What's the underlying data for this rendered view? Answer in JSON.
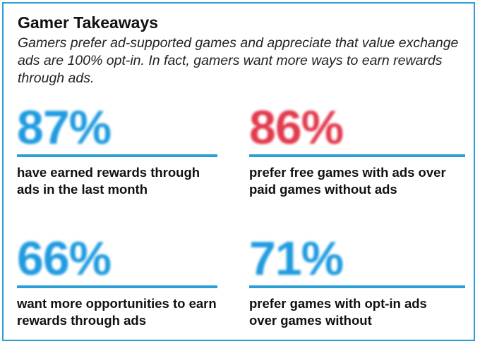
{
  "title": "Gamer Takeaways",
  "subtitle": "Gamers prefer ad-supported games and appreciate that value exchange ads are 100% opt-in. In fact, gamers want more ways to earn rewards through ads.",
  "colors": {
    "border": "#2a9fd6",
    "rule": "#2a9fd6",
    "blue_stat": "#1f9be0",
    "red_stat": "#e23a4e"
  },
  "stats": [
    {
      "value": "87%",
      "description": "have earned rewards through ads in the last month",
      "color": "#1f9be0"
    },
    {
      "value": "86%",
      "description": "prefer free games with ads over paid games without ads",
      "color": "#e23a4e"
    },
    {
      "value": "66%",
      "description": "want more opportunities to earn rewards through ads",
      "color": "#1f9be0"
    },
    {
      "value": "71%",
      "description": "prefer games with opt-in ads over games without",
      "color": "#1f9be0"
    }
  ]
}
